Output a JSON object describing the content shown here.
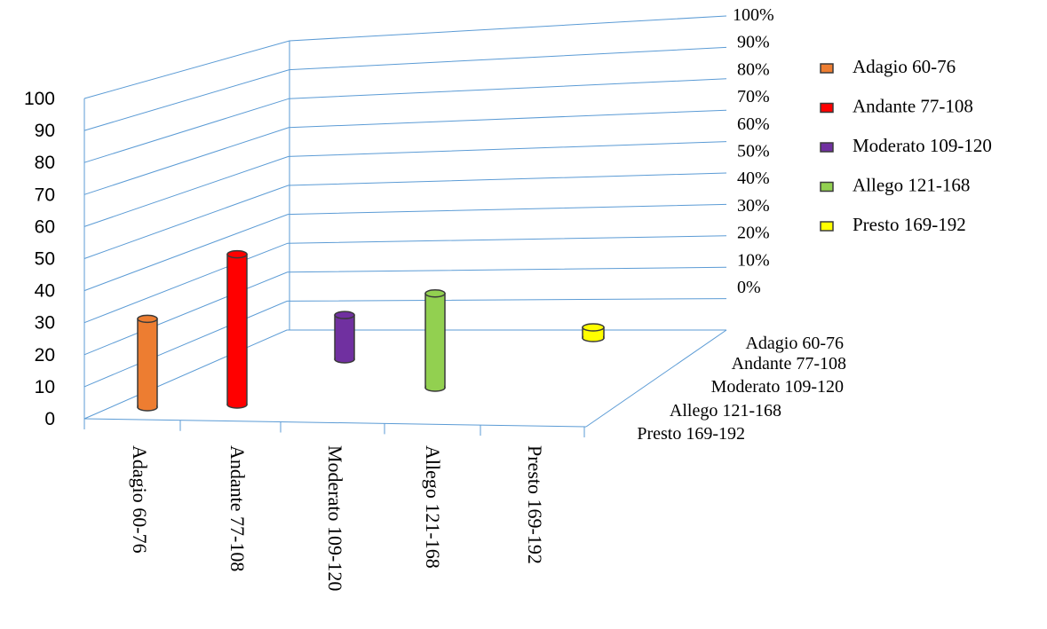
{
  "chart_data": {
    "type": "bar",
    "categories": [
      "Adagio 60-76",
      "Andante 77-108",
      "Moderato 109-120",
      "Allego 121-168",
      "Presto 169-192"
    ],
    "series": [
      {
        "name": "Adagio 60-76",
        "values": [
          30,
          null,
          null,
          null,
          null
        ],
        "color": "#ed7d31"
      },
      {
        "name": "Andante 77-108",
        "values": [
          null,
          51,
          null,
          null,
          null
        ],
        "color": "#ff0000"
      },
      {
        "name": "Moderato 109-120",
        "values": [
          null,
          null,
          15,
          null,
          null
        ],
        "color": "#7030a0"
      },
      {
        "name": "Allego 121-168",
        "values": [
          null,
          null,
          null,
          32,
          null
        ],
        "color": "#92d050"
      },
      {
        "name": "Presto 169-192",
        "values": [
          null,
          null,
          null,
          null,
          3
        ],
        "color": "#ffff00"
      }
    ],
    "bar_base": [
      0,
      0,
      10,
      5,
      18
    ],
    "y_ticks": [
      "0",
      "10",
      "20",
      "30",
      "40",
      "50",
      "60",
      "70",
      "80",
      "90",
      "100"
    ],
    "y2_ticks": [
      "0%",
      "10%",
      "20%",
      "30%",
      "40%",
      "50%",
      "60%",
      "70%",
      "80%",
      "90%",
      "100%"
    ],
    "depth_labels": [
      "Adagio 60-76",
      "Andante 77-108",
      "Moderato 109-120",
      "Allego 121-168",
      "Presto 169-192"
    ],
    "ylim": [
      0,
      100
    ],
    "legend_position": "right",
    "grid": true,
    "shape": "cylinder"
  }
}
